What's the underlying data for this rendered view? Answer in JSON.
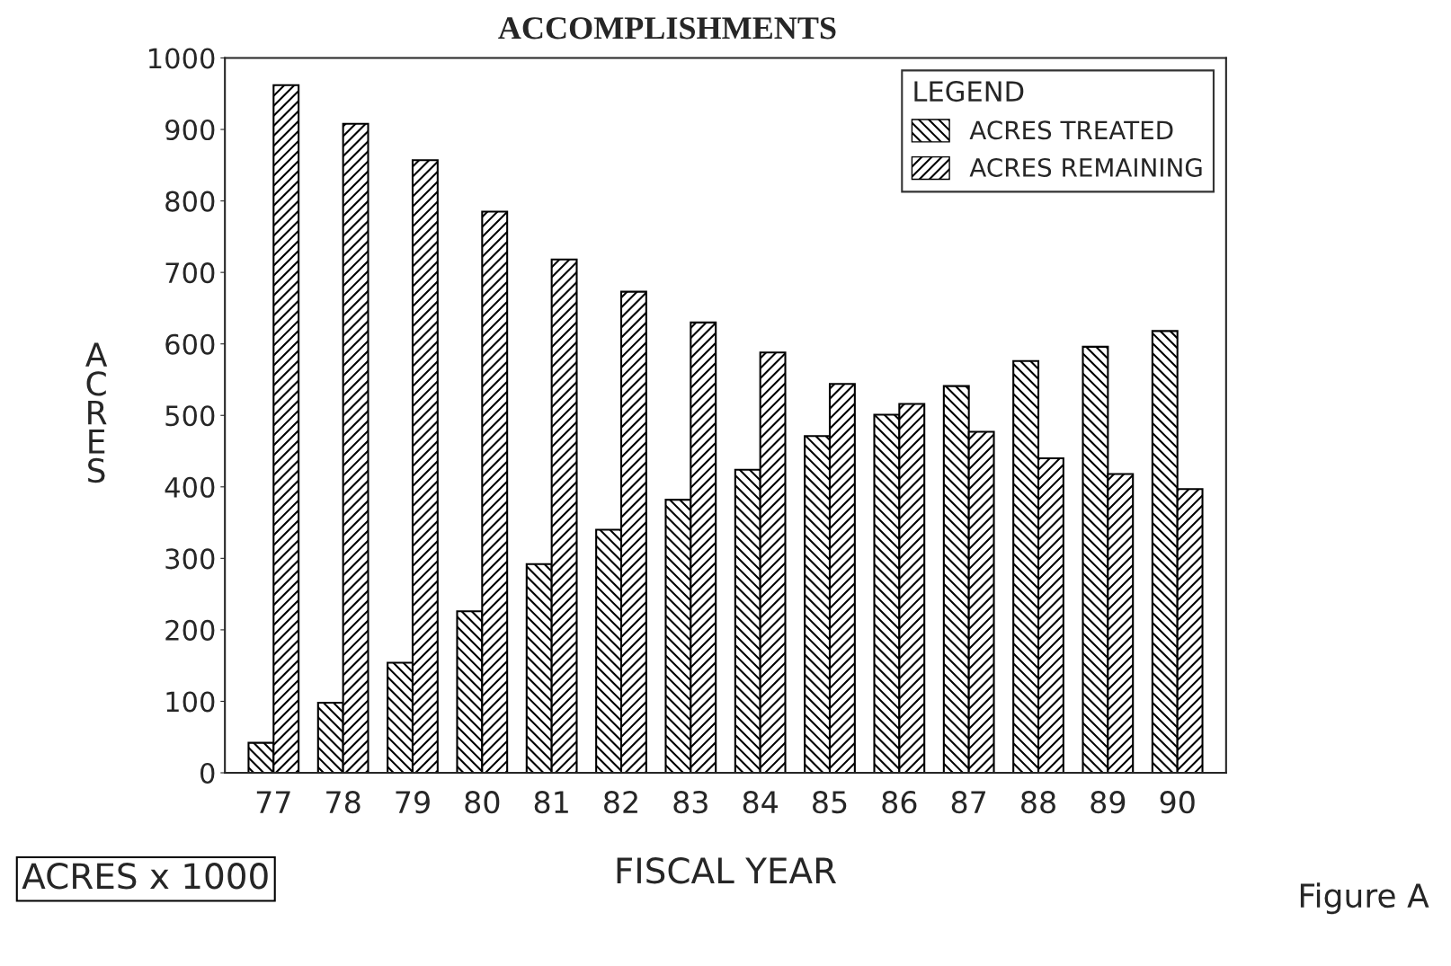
{
  "chart_data": {
    "type": "bar",
    "title": "ACCOMPLISHMENTS",
    "xlabel": "FISCAL YEAR",
    "ylabel": "ACRES",
    "categories": [
      "77",
      "78",
      "79",
      "80",
      "81",
      "82",
      "83",
      "84",
      "85",
      "86",
      "87",
      "88",
      "89",
      "90"
    ],
    "series": [
      {
        "name": "ACRES TREATED",
        "color": "#000000",
        "values": [
          42,
          98,
          154,
          226,
          292,
          340,
          382,
          424,
          471,
          501,
          541,
          576,
          596,
          618
        ]
      },
      {
        "name": "ACRES REMAINING",
        "color": "#000000",
        "values": [
          962,
          908,
          857,
          785,
          718,
          673,
          630,
          588,
          544,
          516,
          477,
          440,
          418,
          397
        ]
      }
    ],
    "ylim": [
      0,
      1000
    ],
    "yticks": [
      0,
      100,
      200,
      300,
      400,
      500,
      600,
      700,
      800,
      900,
      1000
    ],
    "legend": "top right",
    "legend_title": "LEGEND",
    "grid": false,
    "annotations": [
      "ACRES x 1000",
      "Figure A"
    ]
  }
}
